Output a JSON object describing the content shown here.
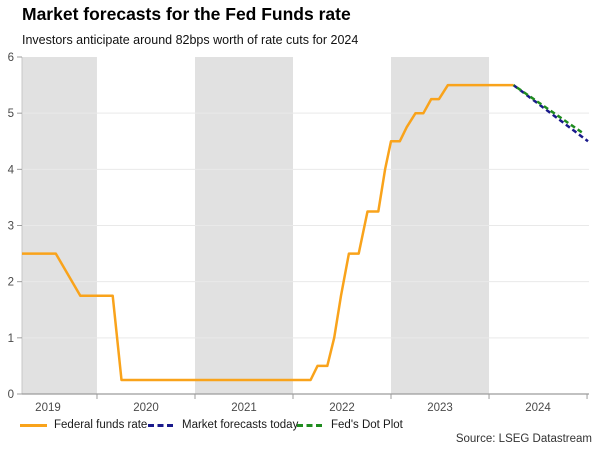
{
  "chart_data": {
    "type": "line",
    "title": "Market forecasts for the Fed Funds rate",
    "subtitle": "Investors anticipate around 82bps worth of rate cuts for 2024",
    "source": "Source: LSEG Datastream",
    "xlabel": "",
    "ylabel": "",
    "x_range": [
      2019.235,
      2025.02
    ],
    "ylim": [
      0,
      6
    ],
    "yticks": [
      0,
      1,
      2,
      3,
      4,
      5,
      6
    ],
    "year_boundary_ticks": [
      2020,
      2021,
      2022,
      2023,
      2024,
      2025
    ],
    "year_labels": [
      "2019",
      "2020",
      "2021",
      "2022",
      "2023",
      "2024"
    ],
    "shaded_years": [
      2019,
      2021,
      2023
    ],
    "grid": true,
    "legend_position": "bottom",
    "colors": {
      "band": "#E1E1E1",
      "grid": "#E9E9E9",
      "axis": "#9C9C9C",
      "spine": "#C8C8C8",
      "tick_text": "#4A4A4A"
    },
    "series": [
      {
        "name": "Federal funds rate",
        "color": "#F9A31B",
        "style": "solid",
        "dash_offset": 0,
        "points": [
          [
            2019.235,
            2.5
          ],
          [
            2019.58,
            2.5
          ],
          [
            2019.83,
            1.75
          ],
          [
            2020.16,
            1.75
          ],
          [
            2020.25,
            0.25
          ],
          [
            2022.18,
            0.25
          ],
          [
            2022.25,
            0.5
          ],
          [
            2022.35,
            0.5
          ],
          [
            2022.42,
            1.0
          ],
          [
            2022.49,
            1.75
          ],
          [
            2022.57,
            2.5
          ],
          [
            2022.67,
            2.5
          ],
          [
            2022.76,
            3.25
          ],
          [
            2022.87,
            3.25
          ],
          [
            2022.94,
            4.0
          ],
          [
            2023.0,
            4.5
          ],
          [
            2023.09,
            4.5
          ],
          [
            2023.16,
            4.75
          ],
          [
            2023.25,
            5.0
          ],
          [
            2023.33,
            5.0
          ],
          [
            2023.41,
            5.25
          ],
          [
            2023.49,
            5.25
          ],
          [
            2023.58,
            5.5
          ],
          [
            2024.25,
            5.5
          ]
        ]
      },
      {
        "name": "Market forecasts today",
        "color": "#1A1A8C",
        "style": "dashed",
        "dash_offset": 0,
        "points": [
          [
            2024.25,
            5.5
          ],
          [
            2025.01,
            4.5
          ]
        ]
      },
      {
        "name": "Fed's Dot Plot",
        "color": "#1F8C1F",
        "style": "dashed",
        "dash_offset": 4,
        "points": [
          [
            2024.25,
            5.5
          ],
          [
            2024.97,
            4.63
          ]
        ]
      }
    ]
  }
}
